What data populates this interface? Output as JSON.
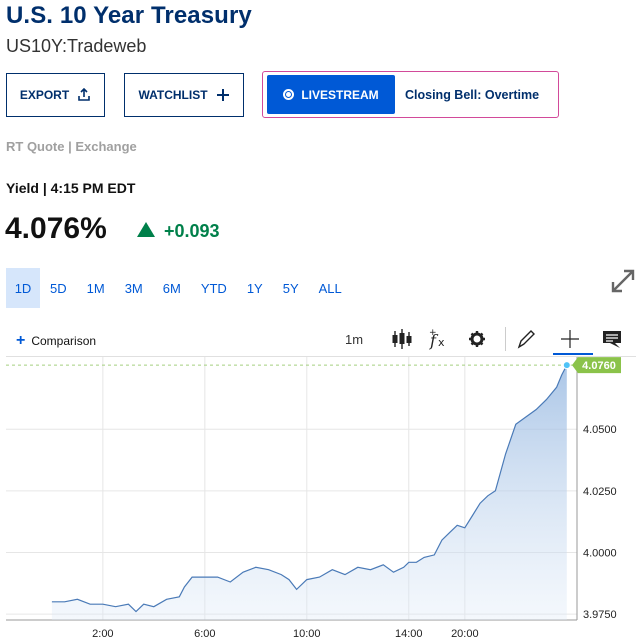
{
  "header": {
    "title": "U.S. 10 Year Treasury",
    "symbol": "US10Y:Tradeweb"
  },
  "actions": {
    "export_label": "EXPORT",
    "watchlist_label": "WATCHLIST",
    "livestream_label": "LIVESTREAM",
    "livestream_show": "Closing Bell: Overtime"
  },
  "quote": {
    "source": "RT Quote | Exchange",
    "yield_time": "Yield | 4:15 PM EDT",
    "price": "4.076%",
    "change": "+0.093"
  },
  "ranges": [
    "1D",
    "5D",
    "1M",
    "3M",
    "6M",
    "YTD",
    "1Y",
    "5Y",
    "ALL"
  ],
  "active_range": "1D",
  "toolbar": {
    "comparison_label": "Comparison",
    "interval": "1m"
  },
  "colors": {
    "brand": "#002f6c",
    "accent": "#0059d6",
    "up": "#00804a",
    "line": "#4a7ab7",
    "last_badge": "#8bc34a"
  },
  "chart_data": {
    "type": "area",
    "x_ticks": [
      "2:00",
      "6:00",
      "10:00",
      "14:00",
      "20:00"
    ],
    "y_ticks": [
      "4.0500",
      "4.0250",
      "4.0000",
      "3.9750"
    ],
    "last_value_label": "4.0760",
    "x": [
      0.0,
      0.5,
      1.0,
      1.5,
      2.0,
      2.5,
      3.0,
      3.3,
      3.6,
      4.0,
      4.5,
      5.0,
      5.2,
      5.5,
      6.0,
      6.5,
      7.0,
      7.5,
      8.0,
      8.5,
      9.0,
      9.3,
      9.6,
      10.0,
      10.5,
      11.0,
      11.5,
      12.0,
      12.5,
      13.0,
      13.4,
      13.8,
      14.0,
      14.3,
      14.6,
      15.0,
      15.3,
      15.6,
      15.9,
      16.2,
      16.5,
      16.8,
      17.1,
      17.4,
      17.8,
      18.2,
      18.6,
      19.0,
      19.4,
      19.8,
      20.0,
      20.2
    ],
    "values": [
      3.98,
      3.98,
      3.981,
      3.979,
      3.979,
      3.978,
      3.979,
      3.976,
      3.979,
      3.978,
      3.981,
      3.982,
      3.986,
      3.99,
      3.99,
      3.99,
      3.988,
      3.992,
      3.994,
      3.993,
      3.991,
      3.989,
      3.985,
      3.989,
      3.99,
      3.993,
      3.991,
      3.994,
      3.993,
      3.995,
      3.992,
      3.994,
      3.996,
      3.996,
      3.998,
      3.999,
      4.005,
      4.008,
      4.011,
      4.01,
      4.015,
      4.02,
      4.023,
      4.025,
      4.04,
      4.052,
      4.055,
      4.058,
      4.062,
      4.067,
      4.072,
      4.076
    ],
    "xlim": [
      -1.8,
      20.6
    ],
    "ylim": [
      3.9726,
      4.0793
    ]
  }
}
